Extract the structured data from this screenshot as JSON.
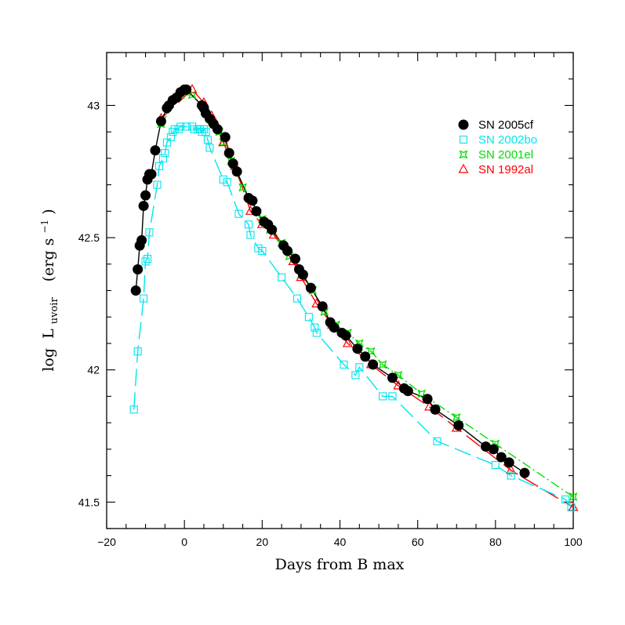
{
  "chart_data": {
    "type": "line",
    "xlabel": "Days from B max",
    "ylabel": {
      "prefix": "log",
      "symbol": "L",
      "subscript": "uvoir",
      "units_open": "(erg s",
      "units_exp": "−1",
      "units_close": ")"
    },
    "xlim": [
      -20,
      100
    ],
    "ylim": [
      41.4,
      43.2
    ],
    "x_ticks": [
      -20,
      0,
      20,
      40,
      60,
      80,
      100
    ],
    "x_tick_labels": [
      "−20",
      "0",
      "20",
      "40",
      "60",
      "80",
      "100"
    ],
    "y_ticks": [
      41.5,
      42,
      42.5,
      43
    ],
    "y_tick_labels": [
      "41.5",
      "42",
      "42.5",
      "43"
    ],
    "grid": false,
    "legend_position": "top-right",
    "series": [
      {
        "name": "SN 2005cf",
        "color": "#000000",
        "marker": "filled-circle",
        "line": "solid",
        "x": [
          -12.5,
          -12,
          -11.5,
          -11,
          -10.5,
          -10,
          -9.5,
          -9,
          -8.5,
          -7.5,
          -6,
          -4.5,
          -4,
          -3,
          -2,
          -1,
          0,
          0.5,
          4.5,
          5,
          5.5,
          6.5,
          7.5,
          8.5,
          10.5,
          11.5,
          12.5,
          13.5,
          16.5,
          17.5,
          18.5,
          20.5,
          21.5,
          22.5,
          25.5,
          26.5,
          28.5,
          29.5,
          30.5,
          32.5,
          35.5,
          37.5,
          38.5,
          40.5,
          41.5,
          44.5,
          46.5,
          48.5,
          53.5,
          56.5,
          57.5,
          62.5,
          64.5,
          70.5,
          77.5,
          79.5,
          81.5,
          83.5,
          87.5
        ],
        "y": [
          42.3,
          42.38,
          42.47,
          42.49,
          42.62,
          42.66,
          42.72,
          42.74,
          42.74,
          42.83,
          42.94,
          42.99,
          43.0,
          43.02,
          43.03,
          43.05,
          43.06,
          43.06,
          43.0,
          42.99,
          42.97,
          42.95,
          42.93,
          42.91,
          42.88,
          42.82,
          42.78,
          42.75,
          42.65,
          42.64,
          42.6,
          42.56,
          42.55,
          42.53,
          42.47,
          42.45,
          42.42,
          42.38,
          42.36,
          42.31,
          42.24,
          42.18,
          42.16,
          42.14,
          42.13,
          42.08,
          42.05,
          42.02,
          41.97,
          41.93,
          41.92,
          41.89,
          41.85,
          41.79,
          41.71,
          41.7,
          41.67,
          41.65,
          41.61
        ]
      },
      {
        "name": "SN 2002bo",
        "color": "#00e5ee",
        "marker": "open-square",
        "line": "long-dash",
        "x": [
          -13,
          -12,
          -10.5,
          -10,
          -9.5,
          -9,
          -7,
          -6.5,
          -5.5,
          -5,
          -4.5,
          -3.5,
          -3,
          -2.5,
          -1.5,
          -1,
          0.5,
          2,
          2.5,
          3.5,
          4,
          4.5,
          5,
          5.5,
          6,
          6.5,
          10,
          11,
          14,
          16.5,
          17,
          19,
          20,
          25,
          29,
          32,
          33.5,
          34,
          41,
          44,
          45,
          51,
          53.5,
          65,
          80,
          84,
          98,
          99.5
        ],
        "y": [
          41.85,
          42.07,
          42.27,
          42.41,
          42.42,
          42.52,
          42.7,
          42.77,
          42.8,
          42.82,
          42.86,
          42.88,
          42.9,
          42.91,
          42.91,
          42.92,
          42.92,
          42.92,
          42.91,
          42.91,
          42.91,
          42.9,
          42.91,
          42.9,
          42.87,
          42.84,
          42.72,
          42.71,
          42.59,
          42.55,
          42.51,
          42.46,
          42.45,
          42.35,
          42.27,
          42.2,
          42.16,
          42.14,
          42.02,
          41.98,
          42.01,
          41.9,
          41.9,
          41.73,
          41.64,
          41.6,
          41.51,
          41.48
        ]
      },
      {
        "name": "SN 2001el",
        "color": "#00dd00",
        "marker": "open-star",
        "line": "dash-dot",
        "x": [
          -6,
          -1,
          2,
          5,
          7,
          9,
          10,
          12,
          15,
          20,
          22,
          25,
          27,
          30,
          33,
          36,
          39,
          42,
          45,
          48,
          51,
          55,
          61,
          70,
          80,
          100
        ],
        "y": [
          42.93,
          43.04,
          43.04,
          42.99,
          42.94,
          42.9,
          42.86,
          42.79,
          42.69,
          42.57,
          42.53,
          42.48,
          42.43,
          42.36,
          42.3,
          42.22,
          42.17,
          42.14,
          42.1,
          42.07,
          42.02,
          41.98,
          41.91,
          41.82,
          41.72,
          41.52
        ]
      },
      {
        "name": "SN 1992al",
        "color": "#ff0000",
        "marker": "open-triangle",
        "line": "long-dash",
        "x": [
          -6,
          2,
          5,
          7,
          10,
          13,
          17,
          20,
          23,
          28,
          30,
          34,
          38,
          42,
          48,
          55,
          63,
          70,
          84,
          100
        ],
        "y": [
          42.95,
          43.06,
          43.01,
          42.96,
          42.86,
          42.77,
          42.6,
          42.55,
          42.51,
          42.41,
          42.35,
          42.25,
          42.17,
          42.1,
          42.02,
          41.94,
          41.86,
          41.78,
          41.62,
          41.48
        ]
      }
    ]
  }
}
